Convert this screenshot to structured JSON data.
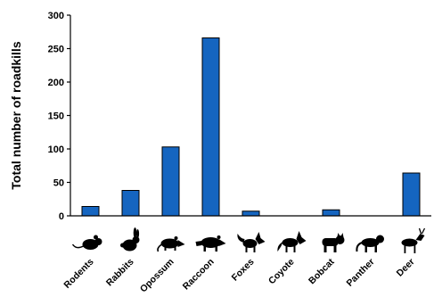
{
  "chart_data": {
    "type": "bar",
    "title": "",
    "xlabel": "",
    "ylabel": "Total number  of roadkills",
    "ylim": [
      0,
      300
    ],
    "yticks": [
      0,
      50,
      100,
      150,
      200,
      250,
      300
    ],
    "categories": [
      "Rodents",
      "Rabbits",
      "Opossum",
      "Raccoon",
      "Foxes",
      "Coyote",
      "Bobcat",
      "Panther",
      "Deer"
    ],
    "values": [
      14,
      38,
      103,
      266,
      7,
      0,
      9,
      0,
      64
    ],
    "icons": [
      "rodent-icon",
      "rabbit-icon",
      "opossum-icon",
      "raccoon-icon",
      "fox-icon",
      "coyote-icon",
      "bobcat-icon",
      "panther-icon",
      "deer-icon"
    ],
    "bar_color": "#1565c0",
    "grid": false,
    "legend": "none"
  }
}
